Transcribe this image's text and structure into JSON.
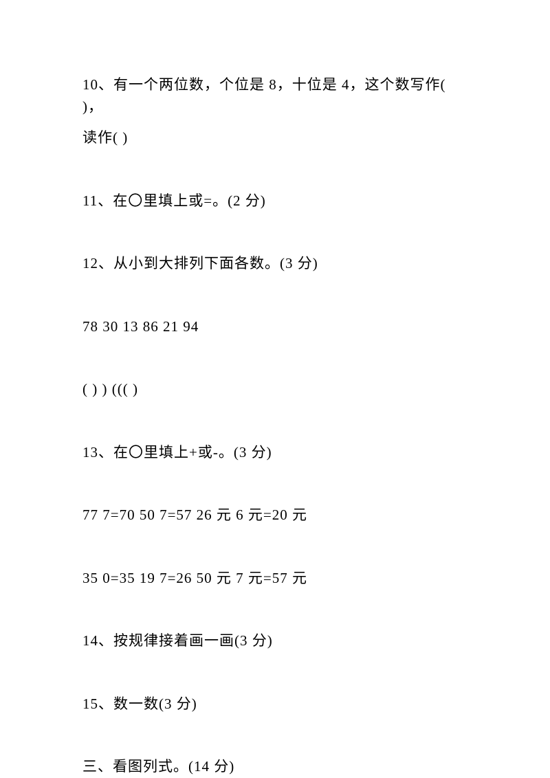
{
  "q10": {
    "line1": "10、有一个两位数，个位是 8，十位是 4，这个数写作( )，",
    "line2": "读作( )"
  },
  "q11": "11、在〇里填上或=。(2 分)",
  "q12": "12、从小到大排列下面各数。(3 分)",
  "q12_numbers": "78 30 13 86 21 94",
  "q12_blanks": "( ) ) ((( )",
  "q13": "13、在〇里填上+或-。(3 分)",
  "q13_row1": "77 7=70 50 7=57 26 元 6 元=20 元",
  "q13_row2": "35 0=35 19 7=26 50 元 7 元=57 元",
  "q14": "14、按规律接着画一画(3 分)",
  "q15": "15、数一数(3 分)",
  "section3": "三、看图列式。(14 分)"
}
